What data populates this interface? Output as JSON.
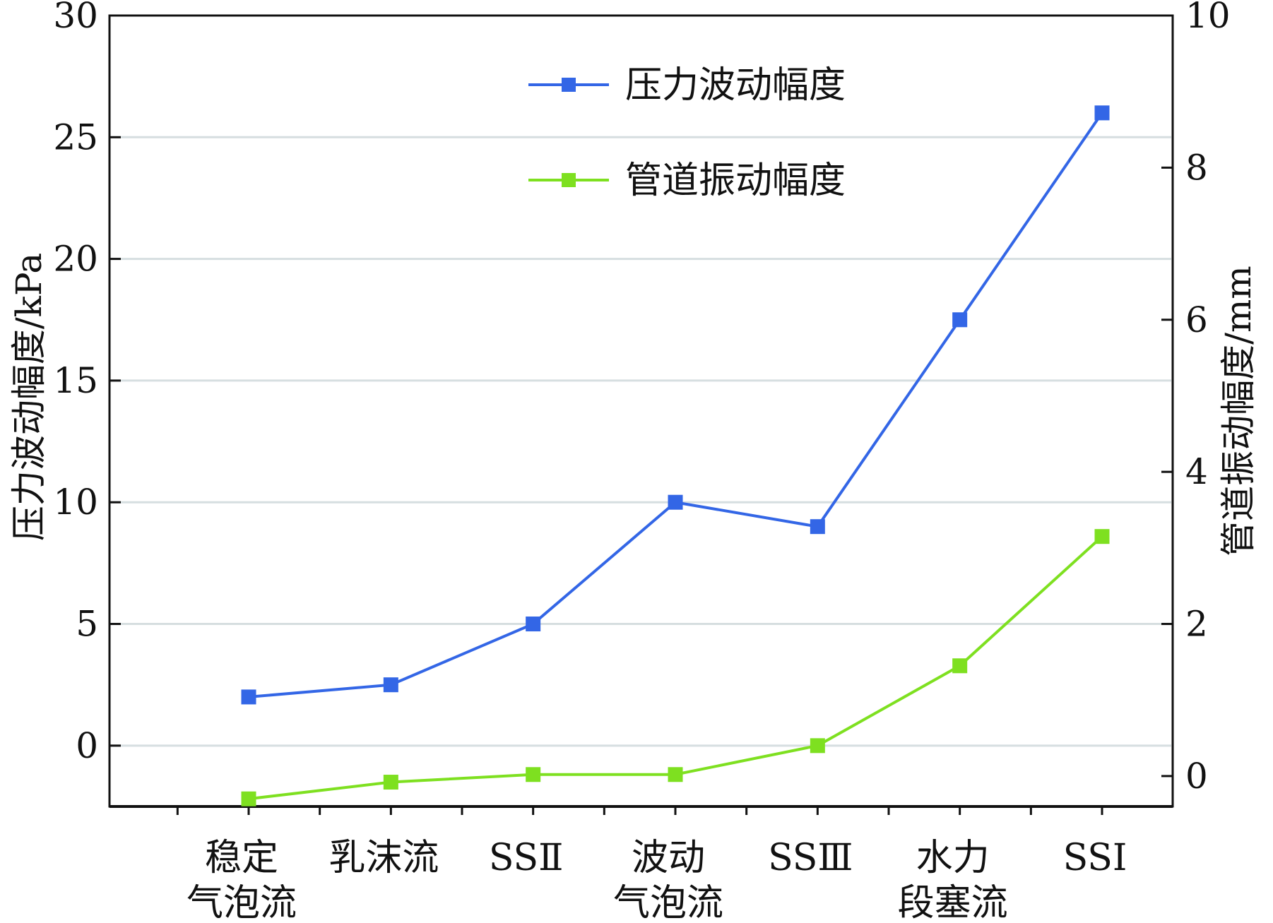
{
  "chart_data": {
    "type": "line",
    "categories": [
      [
        "稳定",
        "气泡流"
      ],
      [
        "乳沫流"
      ],
      [
        "SSⅡ"
      ],
      [
        "波动",
        "气泡流"
      ],
      [
        "SSⅢ"
      ],
      [
        "水力",
        "段塞流"
      ],
      [
        "SSⅠ"
      ]
    ],
    "y_left": {
      "label": "压力波动幅度/kPa",
      "range": [
        -2.5,
        30
      ],
      "ticks": [
        0,
        5,
        10,
        15,
        20,
        25,
        30
      ],
      "tick_labels": [
        "0",
        "5",
        "10",
        "15",
        "20",
        "25",
        "30"
      ]
    },
    "y_right": {
      "label": "管道振动幅度/mm",
      "range": [
        -0.4,
        10
      ],
      "ticks": [
        0,
        2,
        4,
        6,
        8,
        10
      ],
      "tick_labels": [
        "0",
        "2",
        "4",
        "6",
        "8",
        "10"
      ]
    },
    "series": [
      {
        "name": "压力波动幅度",
        "axis": "left",
        "color": "#3366e6",
        "values": [
          2.0,
          2.5,
          5.0,
          10.0,
          9.0,
          17.5,
          26.0
        ]
      },
      {
        "name": "管道振动幅度",
        "axis": "right",
        "color": "#7ee020",
        "values": [
          -0.3,
          -0.08,
          0.02,
          0.02,
          0.4,
          1.45,
          3.15
        ]
      }
    ],
    "grid": true,
    "legend_position": "top-center"
  }
}
